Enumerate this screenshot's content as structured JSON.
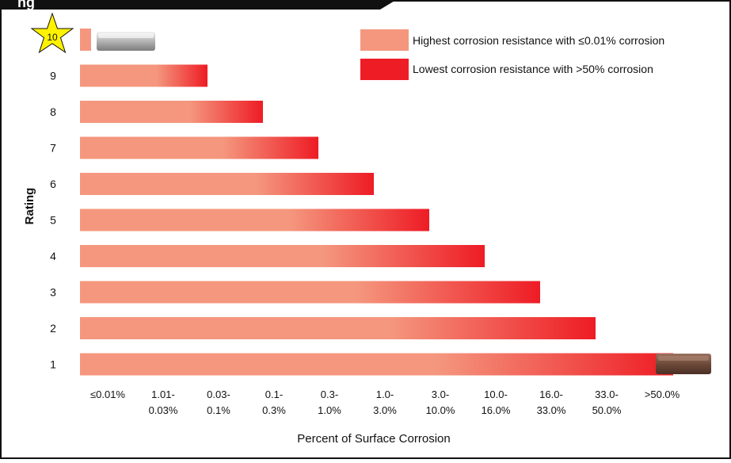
{
  "page": {
    "header_text": "ng"
  },
  "chart_data": {
    "type": "bar",
    "orientation": "horizontal",
    "ylabel": "Rating",
    "xlabel": "Percent of Surface Corrosion",
    "categories": [
      "10",
      "9",
      "8",
      "7",
      "6",
      "5",
      "4",
      "3",
      "2",
      "1"
    ],
    "x_tick_labels": [
      [
        "≤0.01%"
      ],
      [
        "1.01-",
        "0.03%"
      ],
      [
        "0.03-",
        "0.1%"
      ],
      [
        "0.1-",
        "0.3%"
      ],
      [
        "0.3-",
        "1.0%"
      ],
      [
        "1.0-",
        "3.0%"
      ],
      [
        "3.0-",
        "10.0%"
      ],
      [
        "10.0-",
        "16.0%"
      ],
      [
        "16.0-",
        "33.0%"
      ],
      [
        "33.0-",
        "50.0%"
      ],
      [
        ">50.0%"
      ]
    ],
    "values": [
      0.2,
      2.3,
      3.3,
      4.3,
      5.3,
      6.3,
      7.3,
      8.3,
      9.3,
      10.7
    ],
    "xlim": [
      0,
      11
    ],
    "grid": false,
    "legend": {
      "position": "top-right",
      "entries": [
        {
          "label": "Highest corrosion resistance with ≤0.01% corrosion",
          "color": "#f4977e"
        },
        {
          "label": "Lowest corrosion resistance with >50% corrosion",
          "color": "#ee1c25"
        }
      ]
    },
    "colors": {
      "bar_start": "#f4977e",
      "bar_end": "#ee1c25",
      "star": "#fff200"
    },
    "annotations": {
      "top_sample": "stainless-steel-sample",
      "bottom_sample": "rusted-steel-sample"
    }
  }
}
